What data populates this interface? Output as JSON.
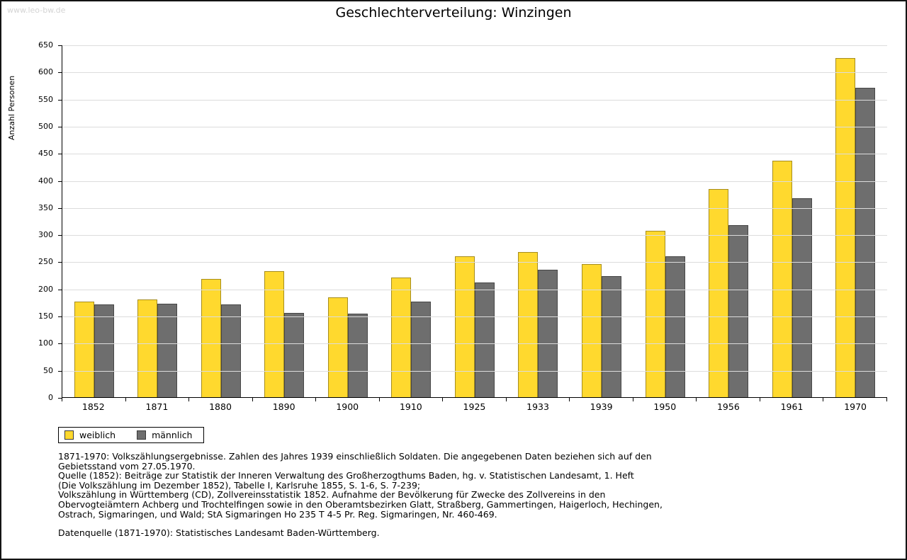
{
  "watermark": "www.leo-bw.de",
  "title": "Geschlechterverteilung: Winzingen",
  "chart_data": {
    "type": "bar",
    "title": "Geschlechterverteilung: Winzingen",
    "xlabel": "",
    "ylabel": "Anzahl Personen",
    "ylim": [
      0,
      650
    ],
    "ytick_step": 50,
    "grid": true,
    "legend_position": "bottom-left",
    "categories": [
      "1852",
      "1871",
      "1880",
      "1890",
      "1900",
      "1910",
      "1925",
      "1933",
      "1939",
      "1950",
      "1956",
      "1961",
      "1970"
    ],
    "series": [
      {
        "name": "weiblich",
        "color": "#FFD92E",
        "values": [
          176,
          181,
          218,
          233,
          184,
          221,
          260,
          268,
          246,
          308,
          385,
          437,
          626
        ]
      },
      {
        "name": "männlich",
        "color": "#6E6E6E",
        "values": [
          172,
          173,
          172,
          156,
          155,
          177,
          212,
          235,
          224,
          260,
          318,
          368,
          571
        ]
      }
    ]
  },
  "footer": {
    "note_lines": [
      "1871-1970: Volkszählungsergebnisse. Zahlen des Jahres 1939 einschließlich Soldaten. Die angegebenen Daten beziehen sich auf den",
      "Gebietsstand vom 27.05.1970.",
      "Quelle (1852): Beiträge zur Statistik der Inneren Verwaltung des Großherzogthums Baden, hg. v. Statistischen Landesamt, 1. Heft",
      "(Die Volkszählung im Dezember 1852), Tabelle I, Karlsruhe 1855, S. 1-6, S. 7-239;",
      "Volkszählung in Württemberg (CD), Zollvereinsstatistik 1852. Aufnahme der Bevölkerung für Zwecke des Zollvereins in den",
      "Obervogteiämtern Achberg und Trochtelfingen sowie in den Oberamtsbezirken Glatt, Straßberg, Gammertingen, Haigerloch, Hechingen,",
      "Ostrach, Sigmaringen, und Wald; StA Sigmaringen Ho 235 T 4-5 Pr. Reg. Sigmaringen, Nr. 460-469."
    ],
    "source": "Datenquelle (1871-1970): Statistisches Landesamt Baden-Württemberg."
  }
}
